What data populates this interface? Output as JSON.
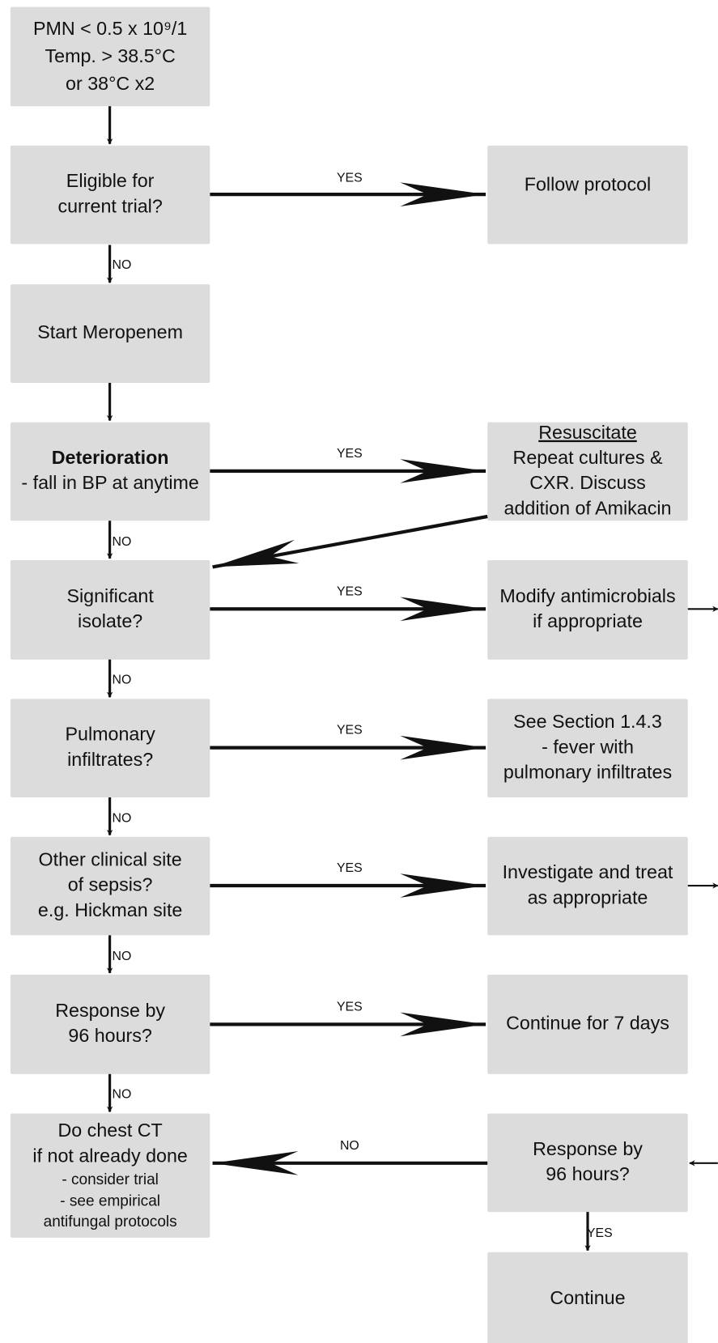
{
  "nodes": [
    {
      "lines": [
        "PMN < 0.5 x 10⁹/1",
        "Temp. > 38.5°C",
        "or 38°C x2"
      ]
    },
    {
      "lines": [
        "Eligible for",
        "current trial?"
      ]
    },
    {
      "lines": [
        "Follow protocol"
      ]
    },
    {
      "lines": [
        "Start Meropenem"
      ]
    },
    {
      "lines": [
        "Deterioration",
        "- fall in BP at anytime"
      ]
    },
    {
      "lines": [
        "Resuscitate",
        "Repeat cultures &",
        "CXR. Discuss",
        "addition of Amikacin"
      ]
    },
    {
      "lines": [
        "Significant",
        "isolate?"
      ]
    },
    {
      "lines": [
        "Modify antimicrobials",
        "if appropriate"
      ]
    },
    {
      "lines": [
        "Pulmonary",
        "infiltrates?"
      ]
    },
    {
      "lines": [
        "See Section 1.4.3",
        "- fever with",
        "pulmonary infiltrates"
      ]
    },
    {
      "lines": [
        "Other clinical site",
        "of sepsis?",
        "e.g. Hickman site"
      ]
    },
    {
      "lines": [
        "Investigate and treat",
        "as appropriate"
      ]
    },
    {
      "lines": [
        "Response by",
        "96 hours?"
      ]
    },
    {
      "lines": [
        "Continue for 7 days"
      ]
    },
    {
      "lines": [
        "Do chest CT",
        "if not already done",
        "- consider trial",
        "- see empirical",
        "antifungal protocols"
      ]
    },
    {
      "lines": [
        "Response by",
        "96 hours?"
      ]
    },
    {
      "lines": [
        "Continue"
      ]
    }
  ],
  "edge_labels": [
    "YES",
    "NO",
    "YES",
    "NO",
    "YES",
    "NO",
    "YES",
    "NO",
    "YES",
    "NO",
    "YES",
    "NO",
    "NO",
    "YES"
  ]
}
